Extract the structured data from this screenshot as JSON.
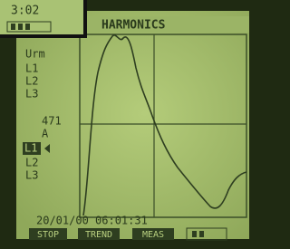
{
  "inset": {
    "time": "3:02"
  },
  "header": {
    "title": "HARMONICS"
  },
  "left_panel": {
    "top_unit": "Urm",
    "top_phases": [
      "L1",
      "L2",
      "L3"
    ],
    "mid_value": "471",
    "mid_unit": "A",
    "bottom_phases": [
      "L1",
      "L2",
      "L3"
    ]
  },
  "footer": {
    "timestamp": "20/01/00  06:01:31",
    "buttons": [
      "STOP",
      "TREND",
      "MEAS"
    ]
  }
}
